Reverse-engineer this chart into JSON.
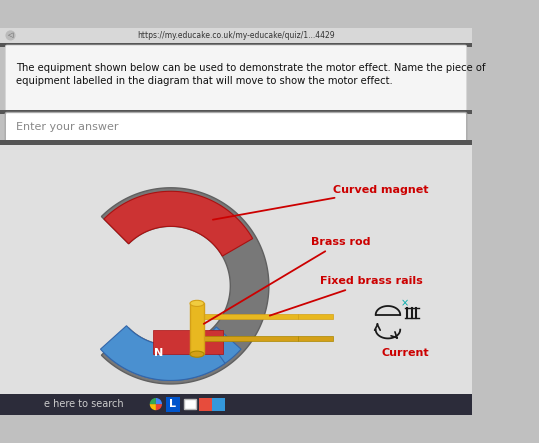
{
  "bg_color": "#c0c0c0",
  "browser_bar_bg": "#e0e0e0",
  "browser_url": "https://my.educake.co.uk/my-educake/quiz/1...4429",
  "question_bg": "#f5f5f5",
  "question_text_line1": "The equipment shown below can be used to demonstrate the motor effect. Name the piece of",
  "question_text_line2": "equipment labelled in the diagram that will move to show the motor effect.",
  "answer_placeholder": "Enter your answer",
  "diagram_bg": "#e8e8e8",
  "label_color": "#cc0000",
  "label_color_cyan": "#00aaaa",
  "labels": {
    "curved_magnet": "Curved magnet",
    "brass_rod": "Brass rod",
    "fixed_brass_rails": "Fixed brass rails",
    "current": "Current",
    "N": "N"
  },
  "taskbar_color": "#2c2c3a",
  "footer_text": "e here to search",
  "gray_magnet": "#787878",
  "gray_magnet_dark": "#606060",
  "gray_magnet_light": "#909090",
  "blue_magnet": "#4a90d0",
  "red_magnet": "#cc3333",
  "yellow_brass": "#d4a017",
  "yellow_bright": "#e8b820"
}
